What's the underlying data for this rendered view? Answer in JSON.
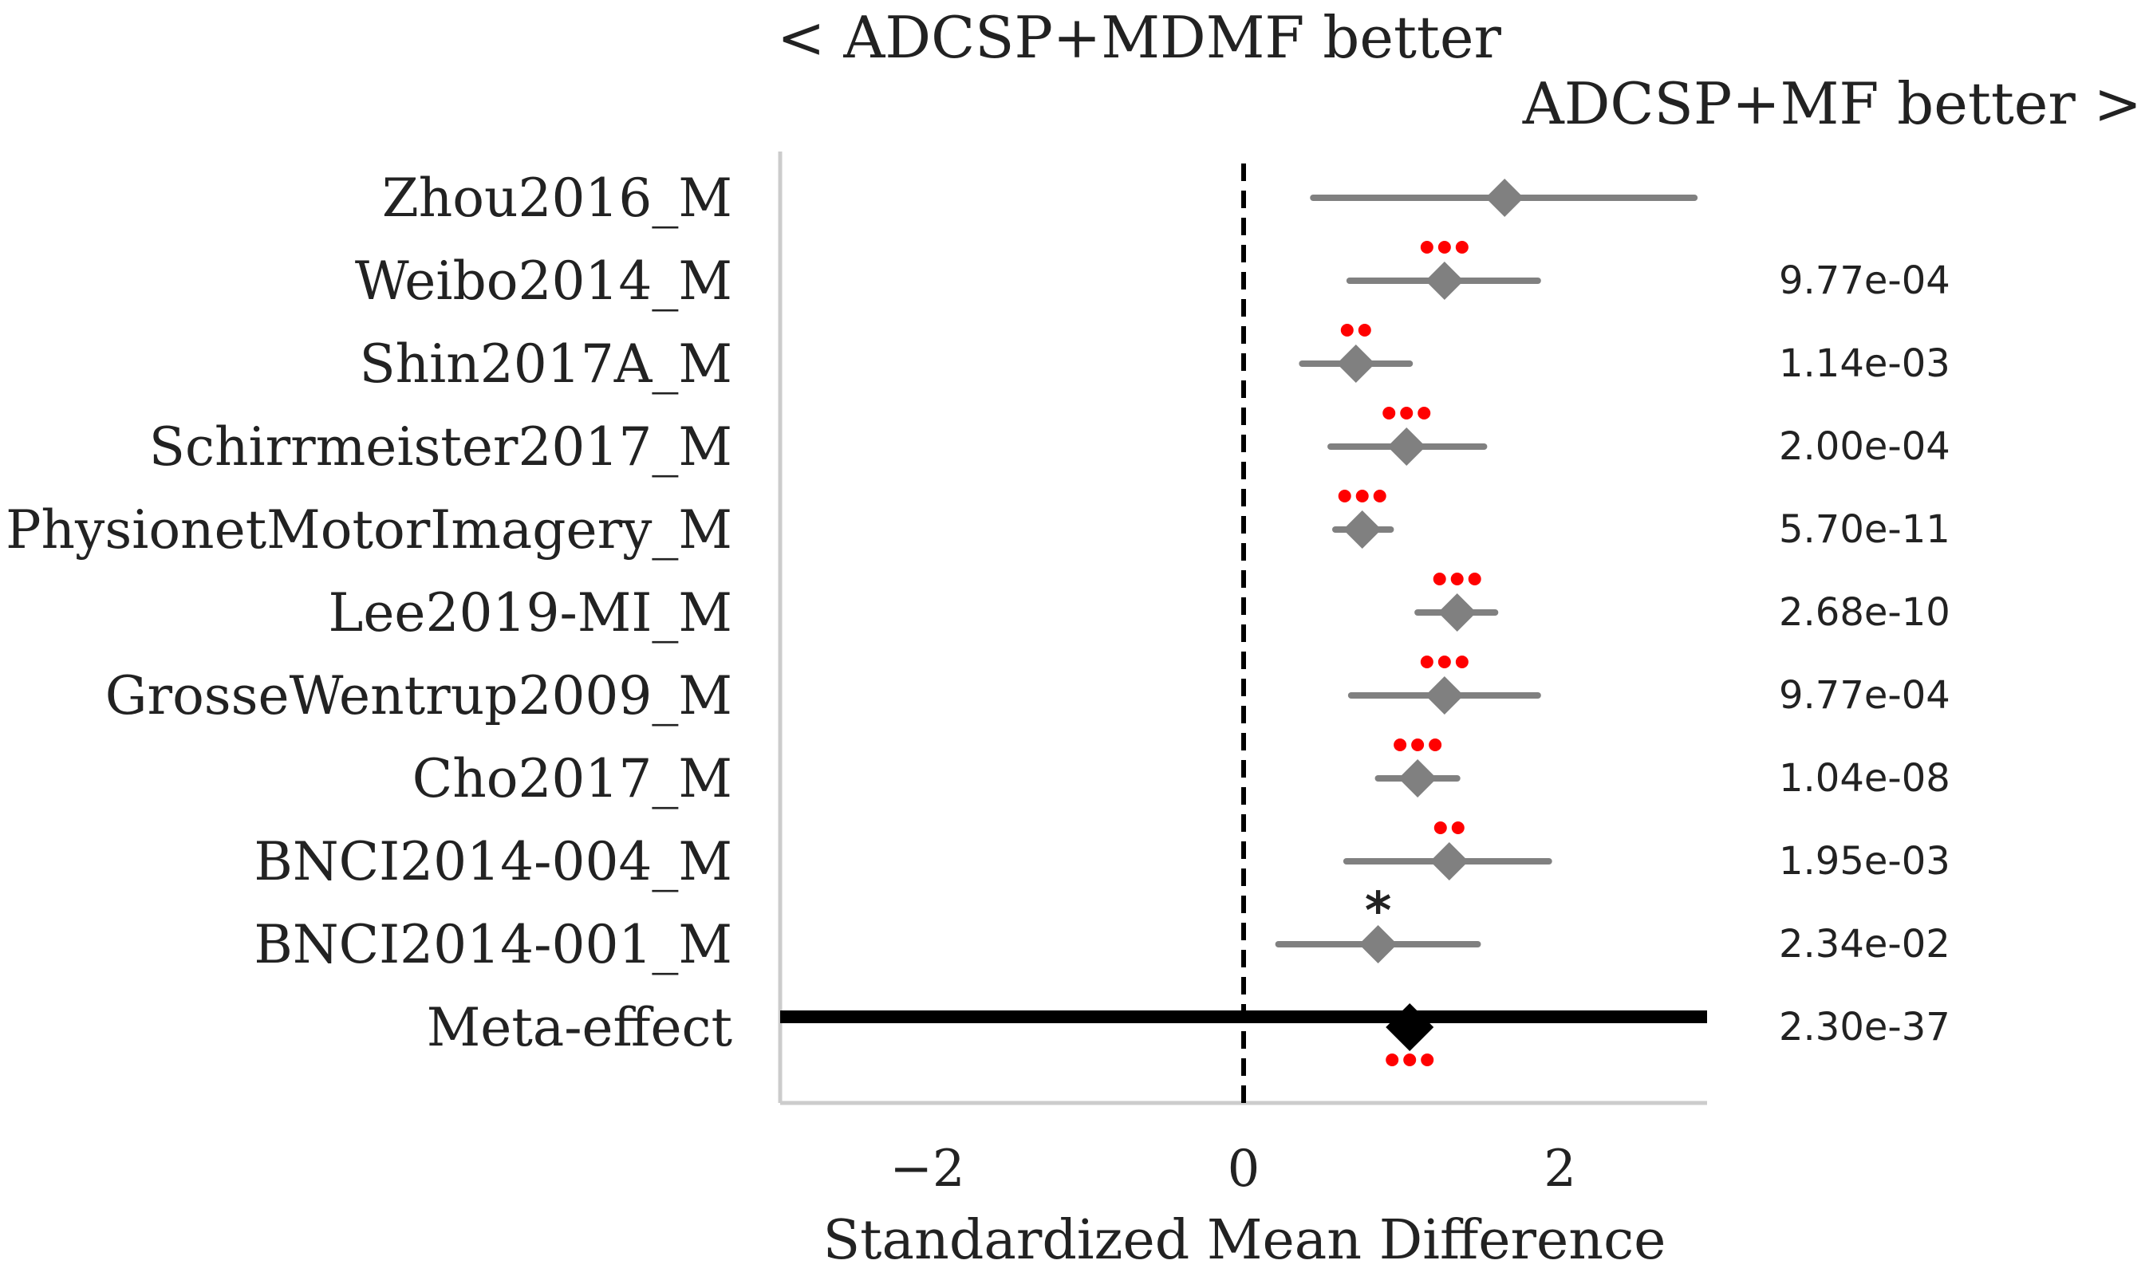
{
  "chart_data": {
    "type": "forest",
    "header_left": "< ADCSP+MDMF better",
    "header_right": "ADCSP+MF better >",
    "xlabel": "Standardized Mean Difference",
    "xlim": [
      -2.93,
      2.93
    ],
    "xticks": [
      {
        "value": -2,
        "label": "−2"
      },
      {
        "value": 0,
        "label": "0"
      },
      {
        "value": 2,
        "label": "2"
      }
    ],
    "reference_line": 0,
    "colors": {
      "study": "#808080",
      "meta": "#000000",
      "significance": "#ff0000",
      "axis_spine": "#cccccc"
    },
    "studies": [
      {
        "label": "Zhou2016_M",
        "smd": 1.65,
        "ci": [
          0.44,
          2.85
        ],
        "p_value": "",
        "stars": ""
      },
      {
        "label": "Weibo2014_M",
        "smd": 1.27,
        "ci": [
          0.67,
          1.86
        ],
        "p_value": "9.77e-04",
        "stars": "***"
      },
      {
        "label": "Shin2017A_M",
        "smd": 0.71,
        "ci": [
          0.37,
          1.05
        ],
        "p_value": "1.14e-03",
        "stars": "**"
      },
      {
        "label": "Schirrmeister2017_M",
        "smd": 1.03,
        "ci": [
          0.55,
          1.52
        ],
        "p_value": "2.00e-04",
        "stars": "***"
      },
      {
        "label": "PhysionetMotorImagery_M",
        "smd": 0.75,
        "ci": [
          0.58,
          0.93
        ],
        "p_value": "5.70e-11",
        "stars": "***"
      },
      {
        "label": "Lee2019-MI_M",
        "smd": 1.35,
        "ci": [
          1.1,
          1.59
        ],
        "p_value": "2.68e-10",
        "stars": "***"
      },
      {
        "label": "GrosseWentrup2009_M",
        "smd": 1.27,
        "ci": [
          0.68,
          1.86
        ],
        "p_value": "9.77e-04",
        "stars": "***"
      },
      {
        "label": "Cho2017_M",
        "smd": 1.1,
        "ci": [
          0.85,
          1.35
        ],
        "p_value": "1.04e-08",
        "stars": "***"
      },
      {
        "label": "BNCI2014-004_M",
        "smd": 1.3,
        "ci": [
          0.65,
          1.93
        ],
        "p_value": "1.95e-03",
        "stars": "**"
      },
      {
        "label": "BNCI2014-001_M",
        "smd": 0.85,
        "ci": [
          0.22,
          1.48
        ],
        "p_value": "2.34e-02",
        "stars": "*"
      }
    ],
    "meta": {
      "label": "Meta-effect",
      "smd": 1.05,
      "p_value": "2.30e-37",
      "stars": "***"
    }
  }
}
